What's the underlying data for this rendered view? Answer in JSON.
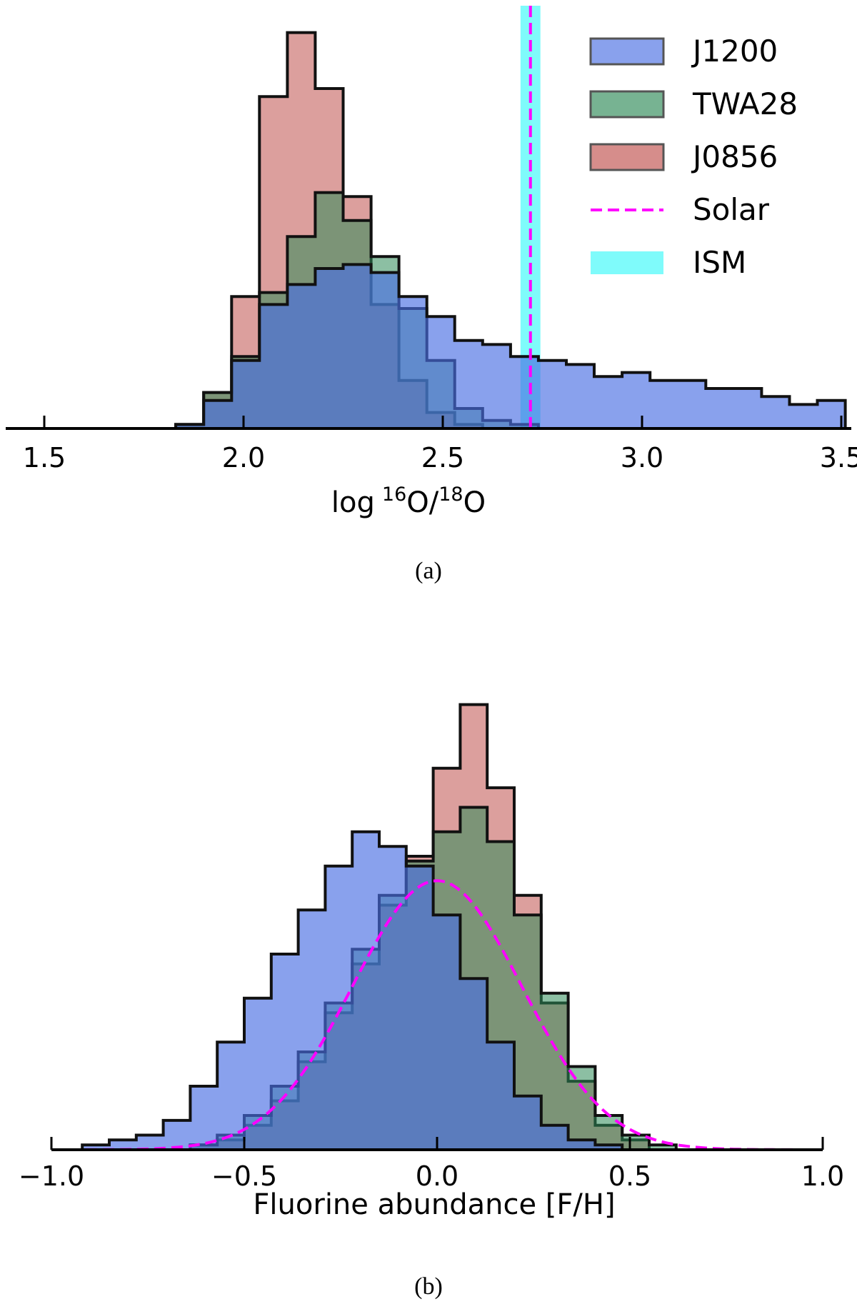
{
  "chart_data": [
    {
      "panel": "(a)",
      "type": "histogram",
      "xlabel_main": "log",
      "xlabel_sup1": "16",
      "xlabel_mid": "O/",
      "xlabel_sup2": "18",
      "xlabel_end": "O",
      "ylabel": "",
      "xlim": [
        1.43,
        3.62
      ],
      "ylim": [
        0,
        1
      ],
      "grid": false,
      "legend_placement": "top-right",
      "xticks": [
        1.5,
        2.0,
        2.5,
        3.0,
        3.5
      ],
      "xtick_labels": [
        "1.5",
        "2.0",
        "2.5",
        "3.0",
        "3.5"
      ],
      "vlines": [
        {
          "name": "ISM",
          "x": 2.72,
          "width": 0.05,
          "color": "#7ffbfb",
          "style": "band"
        },
        {
          "name": "Solar",
          "x": 2.72,
          "color": "#ff00ff",
          "style": "dashed"
        }
      ],
      "series": [
        {
          "name": "J1200",
          "color": "#4a6fe3",
          "opacity": 0.65,
          "edges": [
            1.83,
            1.9,
            1.97,
            2.04,
            2.11,
            2.18,
            2.25,
            2.32,
            2.39,
            2.46,
            2.53,
            2.6,
            2.67,
            2.74,
            2.81,
            2.88,
            2.95,
            3.02,
            3.09,
            3.16,
            3.23,
            3.3,
            3.37,
            3.44,
            3.51
          ],
          "values": [
            0.01,
            0.07,
            0.17,
            0.31,
            0.36,
            0.4,
            0.41,
            0.39,
            0.33,
            0.28,
            0.22,
            0.21,
            0.18,
            0.17,
            0.16,
            0.13,
            0.14,
            0.12,
            0.12,
            0.1,
            0.1,
            0.08,
            0.06,
            0.07
          ]
        },
        {
          "name": "TWA28",
          "color": "#2e8b57",
          "opacity": 0.55,
          "edges": [
            1.83,
            1.9,
            1.97,
            2.04,
            2.11,
            2.18,
            2.25,
            2.32,
            2.39,
            2.46,
            2.53,
            2.6,
            2.67,
            2.74
          ],
          "values": [
            0.01,
            0.09,
            0.18,
            0.34,
            0.48,
            0.59,
            0.52,
            0.43,
            0.3,
            0.17,
            0.05,
            0.02,
            0.01
          ]
        },
        {
          "name": "J0856",
          "color": "#c0504d",
          "opacity": 0.55,
          "edges": [
            1.83,
            1.9,
            1.97,
            2.04,
            2.11,
            2.18,
            2.25,
            2.32,
            2.39,
            2.46,
            2.53,
            2.6
          ],
          "values": [
            0.01,
            0.09,
            0.33,
            0.83,
            0.99,
            0.85,
            0.58,
            0.31,
            0.12,
            0.04,
            0.01
          ]
        }
      ]
    },
    {
      "panel": "(b)",
      "type": "histogram",
      "xlabel": "Fluorine abundance [F/H]",
      "ylabel": "",
      "xlim": [
        -1.0,
        1.0
      ],
      "ylim": [
        0,
        1
      ],
      "grid": false,
      "legend_placement": "none",
      "xticks": [
        -1.0,
        -0.5,
        0.0,
        0.5,
        1.0
      ],
      "xtick_labels": [
        "−1.0",
        "−0.5",
        "0.0",
        "0.5",
        "1.0"
      ],
      "curve": {
        "name": "Solar",
        "color": "#ff00ff",
        "style": "dashed",
        "mean": 0.0,
        "sigma": 0.22,
        "peak": 0.55
      },
      "series": [
        {
          "name": "J1200",
          "color": "#4a6fe3",
          "opacity": 0.65,
          "edges": [
            -0.92,
            -0.85,
            -0.78,
            -0.71,
            -0.64,
            -0.57,
            -0.5,
            -0.43,
            -0.36,
            -0.29,
            -0.22,
            -0.15,
            -0.08,
            -0.01,
            0.06,
            0.13,
            0.2,
            0.27,
            0.34,
            0.41,
            0.48
          ],
          "values": [
            0.01,
            0.02,
            0.03,
            0.06,
            0.13,
            0.22,
            0.31,
            0.4,
            0.49,
            0.58,
            0.65,
            0.62,
            0.58,
            0.48,
            0.35,
            0.22,
            0.11,
            0.05,
            0.02,
            0.01
          ]
        },
        {
          "name": "TWA28",
          "color": "#2e8b57",
          "opacity": 0.55,
          "edges": [
            -0.64,
            -0.57,
            -0.5,
            -0.43,
            -0.36,
            -0.29,
            -0.22,
            -0.15,
            -0.08,
            -0.01,
            0.06,
            0.13,
            0.2,
            0.27,
            0.34,
            0.41,
            0.48,
            0.55,
            0.62
          ],
          "values": [
            0.01,
            0.03,
            0.07,
            0.13,
            0.2,
            0.3,
            0.41,
            0.52,
            0.59,
            0.65,
            0.7,
            0.63,
            0.48,
            0.32,
            0.17,
            0.07,
            0.03,
            0.01
          ]
        },
        {
          "name": "J0856",
          "color": "#c0504d",
          "opacity": 0.55,
          "edges": [
            -0.64,
            -0.57,
            -0.5,
            -0.43,
            -0.36,
            -0.29,
            -0.22,
            -0.15,
            -0.08,
            -0.01,
            0.06,
            0.13,
            0.2,
            0.27,
            0.34,
            0.41,
            0.48,
            0.55
          ],
          "values": [
            0.01,
            0.02,
            0.05,
            0.1,
            0.18,
            0.28,
            0.38,
            0.5,
            0.6,
            0.78,
            0.91,
            0.74,
            0.52,
            0.3,
            0.14,
            0.05,
            0.02
          ]
        }
      ]
    }
  ],
  "legend": [
    {
      "name": "J1200",
      "kind": "patch",
      "color": "#4a6fe3"
    },
    {
      "name": "TWA28",
      "kind": "patch",
      "color": "#2e8b57"
    },
    {
      "name": "J0856",
      "kind": "patch",
      "color": "#c0504d"
    },
    {
      "name": "Solar",
      "kind": "dashed",
      "color": "#ff00ff"
    },
    {
      "name": "ISM",
      "kind": "band",
      "color": "#7ffbfb"
    }
  ]
}
